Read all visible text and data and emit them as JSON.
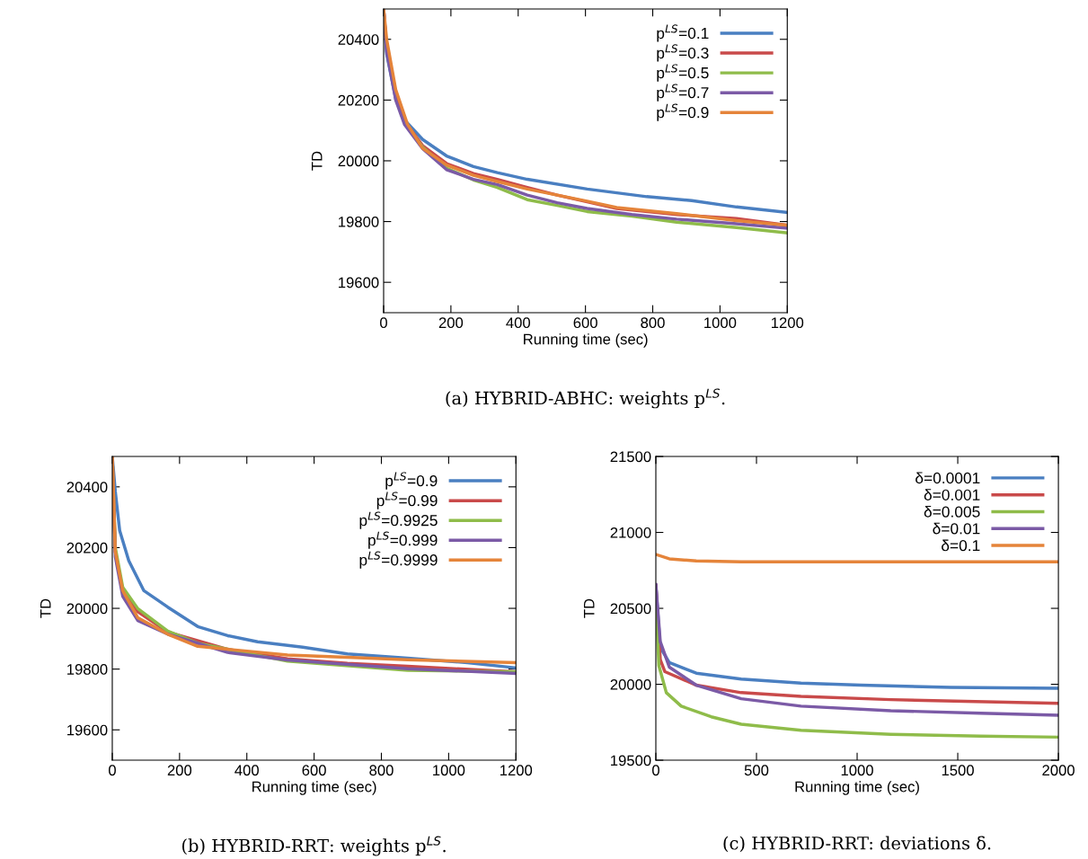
{
  "chart_data": [
    {
      "type": "line",
      "xlabel": "Running time (sec)",
      "ylabel": "TD",
      "xlim": [
        0,
        1200
      ],
      "ylim": [
        19500,
        20500
      ],
      "xticks": [
        0,
        200,
        400,
        600,
        800,
        1000,
        1200
      ],
      "yticks": [
        19600,
        19800,
        20000,
        20200,
        20400
      ],
      "legend": "top right",
      "grid": false,
      "annotations": [
        "(a) HYBRID-ABHC: weights p$^{LS}$."
      ],
      "series": [
        {
          "name": "p$^{LS}$=0.1",
          "color": "#4a7fc1",
          "x": [
            0,
            9,
            36,
            62,
            116,
            187,
            267,
            338,
            427,
            605,
            782,
            916,
            1049,
            1200
          ],
          "values": [
            20500,
            20352,
            20204,
            20135,
            20070,
            20016,
            19981,
            19961,
            19939,
            19907,
            19882,
            19869,
            19848,
            19830
          ]
        },
        {
          "name": "p$^{LS}$=0.3",
          "color": "#c94a4a",
          "x": [
            0,
            9,
            36,
            62,
            116,
            187,
            267,
            338,
            427,
            516,
            605,
            693,
            871,
            1049,
            1200
          ],
          "values": [
            20500,
            20370,
            20210,
            20130,
            20050,
            19991,
            19958,
            19939,
            19912,
            19887,
            19865,
            19843,
            19823,
            19810,
            19788
          ]
        },
        {
          "name": "p$^{LS}$=0.5",
          "color": "#8fbc4a",
          "x": [
            62,
            116,
            187,
            267,
            338,
            427,
            516,
            605,
            738,
            871,
            1049,
            1200
          ],
          "values": [
            20125,
            20045,
            19976,
            19937,
            19912,
            19872,
            19853,
            19833,
            19818,
            19798,
            19780,
            19763
          ]
        },
        {
          "name": "p$^{LS}$=0.7",
          "color": "#7b5aa6",
          "x": [
            0,
            9,
            36,
            62,
            116,
            187,
            267,
            338,
            427,
            516,
            605,
            738,
            871,
            1049,
            1200
          ],
          "values": [
            20500,
            20360,
            20200,
            20120,
            20040,
            19971,
            19939,
            19922,
            19887,
            19862,
            19843,
            19823,
            19808,
            19793,
            19778
          ]
        },
        {
          "name": "p$^{LS}$=0.9",
          "color": "#e5843a",
          "x": [
            0,
            9,
            36,
            71,
            116,
            187,
            267,
            338,
            427,
            516,
            605,
            693,
            871,
            1049,
            1200
          ],
          "values": [
            20500,
            20400,
            20234,
            20120,
            20041,
            19986,
            19952,
            19932,
            19907,
            19887,
            19867,
            19846,
            19826,
            19803,
            19788
          ]
        }
      ]
    },
    {
      "type": "line",
      "xlabel": "Running time (sec)",
      "ylabel": "TD",
      "xlim": [
        0,
        1200
      ],
      "ylim": [
        19500,
        20500
      ],
      "xticks": [
        0,
        200,
        400,
        600,
        800,
        1000,
        1200
      ],
      "yticks": [
        19600,
        19800,
        20000,
        20200,
        20400
      ],
      "legend": "top right",
      "grid": false,
      "annotations": [
        "(b) HYBRID-RRT: weights p$^{LS}$."
      ],
      "series": [
        {
          "name": "p$^{LS}$=0.9",
          "color": "#4a7fc1",
          "x": [
            0,
            9,
            22,
            49,
            94,
            165,
            254,
            343,
            432,
            566,
            699,
            878,
            1056,
            1200
          ],
          "values": [
            20500,
            20385,
            20256,
            20157,
            20058,
            20004,
            19940,
            19910,
            19890,
            19872,
            19850,
            19836,
            19821,
            19804
          ]
        },
        {
          "name": "p$^{LS}$=0.99",
          "color": "#c94a4a",
          "x": [
            0,
            9,
            31,
            76,
            165,
            343,
            521,
            699,
            878,
            1200
          ],
          "values": [
            20500,
            20187,
            20058,
            19989,
            19922,
            19865,
            19834,
            19819,
            19809,
            19791
          ]
        },
        {
          "name": "p$^{LS}$=0.9925",
          "color": "#8fbc4a",
          "x": [
            0,
            9,
            31,
            76,
            165,
            254,
            521,
            878,
            1200
          ],
          "values": [
            20500,
            20200,
            20070,
            19999,
            19925,
            19885,
            19826,
            19796,
            19791
          ]
        },
        {
          "name": "p$^{LS}$=0.999",
          "color": "#7b5aa6",
          "x": [
            0,
            9,
            31,
            76,
            165,
            343,
            521,
            878,
            1200
          ],
          "values": [
            20500,
            20170,
            20040,
            19960,
            19915,
            19855,
            19830,
            19801,
            19786
          ]
        },
        {
          "name": "p$^{LS}$=0.9999",
          "color": "#e5843a",
          "x": [
            0,
            9,
            31,
            76,
            165,
            254,
            521,
            699,
            878,
            1200
          ],
          "values": [
            20500,
            20187,
            20058,
            19969,
            19915,
            19875,
            19846,
            19839,
            19831,
            19821
          ]
        }
      ]
    },
    {
      "type": "line",
      "xlabel": "Running time (sec)",
      "ylabel": "TD",
      "xlim": [
        0,
        2000
      ],
      "ylim": [
        19500,
        21500
      ],
      "xticks": [
        0,
        500,
        1000,
        1500,
        2000
      ],
      "yticks": [
        19500,
        20000,
        20500,
        21000,
        21500
      ],
      "legend": "top right",
      "grid": false,
      "annotations": [
        "(c) HYBRID-RRT: deviations δ."
      ],
      "series": [
        {
          "name": "δ=0.0001",
          "color": "#4a7fc1",
          "x": [
            0,
            22,
            67,
            201,
            424,
            721,
            1019,
            1465,
            2000
          ],
          "values": [
            20650,
            20242,
            20143,
            20073,
            20034,
            20008,
            19994,
            19980,
            19974
          ]
        },
        {
          "name": "δ=0.001",
          "color": "#c94a4a",
          "x": [
            0,
            22,
            45,
            201,
            424,
            721,
            1167,
            2000
          ],
          "values": [
            20650,
            20162,
            20083,
            19994,
            19945,
            19921,
            19899,
            19875
          ]
        },
        {
          "name": "δ=0.005",
          "color": "#8fbc4a",
          "x": [
            0,
            15,
            52,
            126,
            275,
            424,
            721,
            1167,
            1613,
            2000
          ],
          "values": [
            20558,
            20123,
            19945,
            19856,
            19786,
            19737,
            19697,
            19671,
            19658,
            19652
          ]
        },
        {
          "name": "δ=0.01",
          "color": "#7b5aa6",
          "x": [
            0,
            22,
            67,
            201,
            424,
            721,
            1167,
            1613,
            2000
          ],
          "values": [
            20657,
            20281,
            20113,
            19994,
            19905,
            19856,
            19826,
            19810,
            19796
          ]
        },
        {
          "name": "δ=0.1",
          "color": "#e5843a",
          "x": [
            0,
            67,
            201,
            424,
            2000
          ],
          "values": [
            20855,
            20826,
            20812,
            20806,
            20806
          ]
        }
      ]
    }
  ]
}
